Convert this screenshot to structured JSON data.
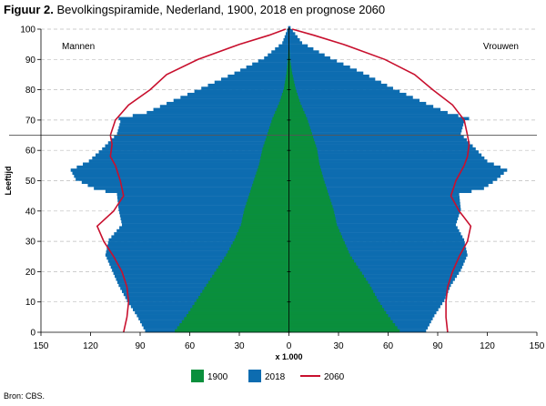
{
  "title": {
    "prefix": "Figuur 2.",
    "text": " Bevolkingspiramide, Nederland, 1900, 2018 en prognose 2060"
  },
  "source": "Bron: CBS.",
  "chart_data": {
    "type": "bar",
    "orientation": "horizontal-pyramid",
    "title": "Figuur 2. Bevolkingspiramide, Nederland, 1900, 2018 en prognose 2060",
    "xlabel": "x 1.000",
    "ylabel": "Leeftijd",
    "left_label": "Mannen",
    "right_label": "Vrouwen",
    "x_ticks": [
      "150",
      "120",
      "90",
      "60",
      "30",
      "0",
      "30",
      "60",
      "90",
      "120",
      "150"
    ],
    "x_tick_values": [
      -150,
      -120,
      -90,
      -60,
      -30,
      0,
      30,
      60,
      90,
      120,
      150
    ],
    "y_ticks": [
      0,
      10,
      20,
      30,
      40,
      50,
      60,
      70,
      80,
      90,
      100
    ],
    "xlim": [
      -150,
      150
    ],
    "ylim": [
      0,
      100
    ],
    "grid": "horizontal dashed",
    "reference_line_age": 65,
    "legend_position": "bottom",
    "colors": {
      "1900": "#0a8f3c",
      "2018": "#0d6cb0",
      "2060": "#c8102e"
    },
    "series": [
      {
        "name": "1900",
        "type": "bar",
        "ages": [
          0,
          5,
          10,
          15,
          20,
          25,
          30,
          35,
          40,
          45,
          50,
          55,
          60,
          65,
          70,
          75,
          80,
          85,
          90,
          95
        ],
        "men": [
          69,
          62,
          56,
          50,
          44,
          38,
          33,
          29,
          27,
          24,
          21,
          18,
          16,
          13,
          10,
          6,
          3,
          1.5,
          0.5,
          0.1
        ],
        "women": [
          67,
          60,
          54,
          49,
          43,
          37,
          33,
          29,
          27,
          24,
          21,
          18.5,
          17,
          14,
          11,
          7,
          4,
          2,
          0.6,
          0.1
        ]
      },
      {
        "name": "2018",
        "type": "bar",
        "ages": [
          0,
          5,
          10,
          15,
          20,
          25,
          30,
          35,
          40,
          45,
          47,
          50,
          53,
          56,
          60,
          65,
          69,
          70,
          72,
          75,
          80,
          85,
          90,
          95,
          100
        ],
        "men": [
          87,
          92,
          98,
          103,
          107,
          111,
          109,
          101,
          103,
          104,
          118,
          129,
          132,
          121,
          113,
          104,
          102,
          103,
          86,
          74,
          53,
          33,
          15,
          4,
          0.5
        ],
        "women": [
          83,
          88,
          94,
          98,
          104,
          108,
          106,
          101,
          104,
          103,
          118,
          126,
          132,
          120,
          113,
          104,
          106,
          109,
          96,
          83,
          63,
          45,
          25,
          8,
          1
        ]
      },
      {
        "name": "2060",
        "type": "line",
        "ages": [
          0,
          5,
          10,
          15,
          20,
          25,
          30,
          35,
          40,
          45,
          50,
          55,
          58,
          62,
          65,
          70,
          75,
          80,
          85,
          90,
          95,
          98,
          100
        ],
        "men": [
          100,
          98,
          97,
          98,
          101,
          106,
          112,
          116,
          106,
          100,
          102,
          105,
          108,
          107,
          108,
          105,
          97,
          84,
          74,
          55,
          30,
          12,
          2
        ],
        "women": [
          96,
          95,
          95,
          96,
          99,
          103,
          108,
          110,
          103,
          98,
          101,
          106,
          108,
          109,
          108,
          106,
          99,
          87,
          76,
          58,
          33,
          15,
          2
        ]
      }
    ]
  },
  "legend": {
    "items": [
      {
        "label": "1900",
        "color": "#0a8f3c"
      },
      {
        "label": "2018",
        "color": "#0d6cb0"
      },
      {
        "label": "2060",
        "color": "#c8102e"
      }
    ]
  }
}
